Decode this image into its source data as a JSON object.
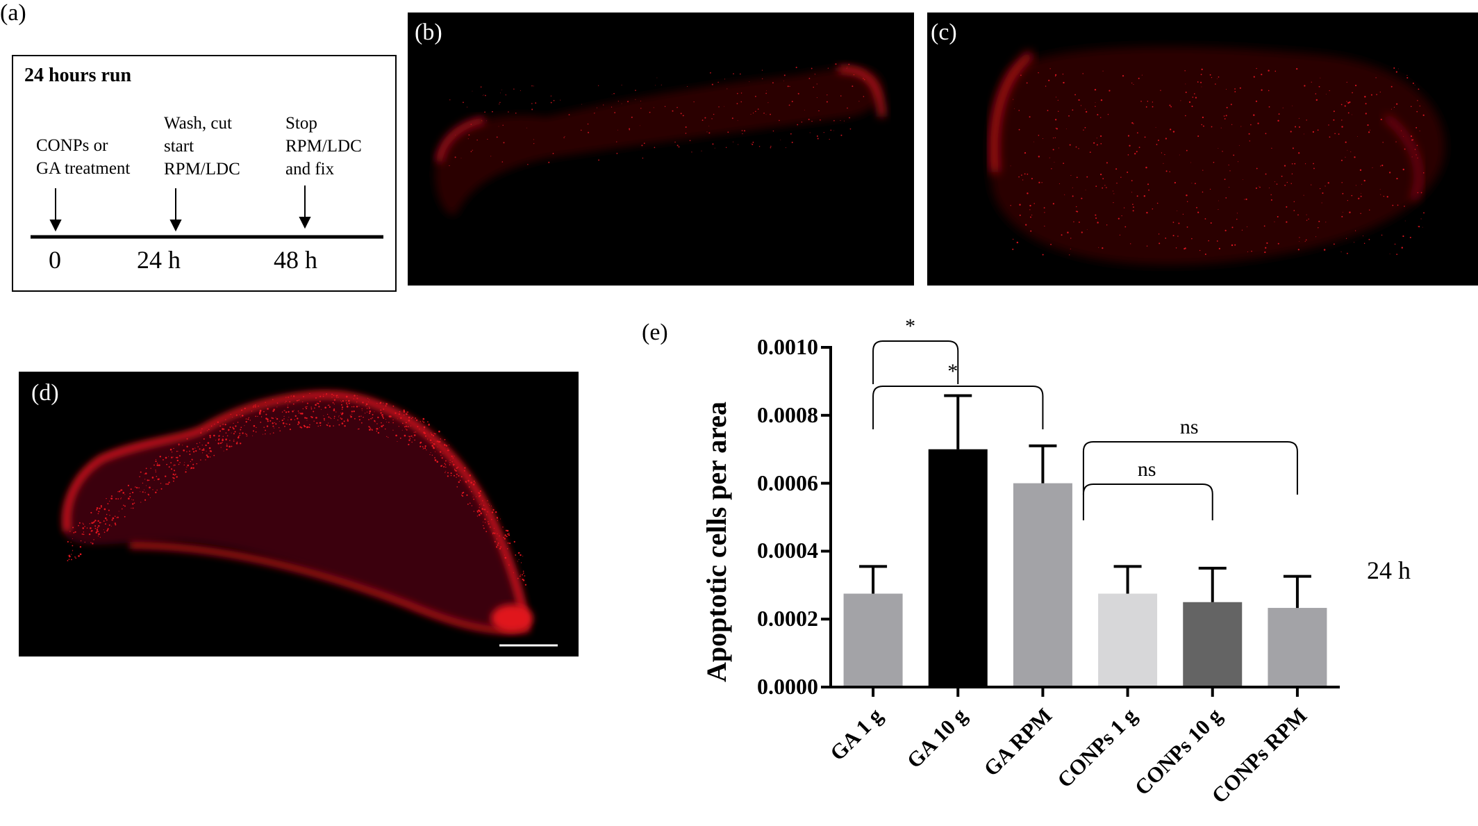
{
  "panel_labels": {
    "a": "(a)",
    "b": "(b)",
    "c": "(c)",
    "d": "(d)",
    "e": "(e)"
  },
  "timeline": {
    "title": "24 hours run",
    "steps": [
      {
        "text": "CONPs or\nGA treatment",
        "tick": "0"
      },
      {
        "text": "Wash, cut\nstart\nRPM/LDC",
        "tick": "24 h"
      },
      {
        "text": "Stop\nRPM/LDC\nand fix",
        "tick": "48 h"
      }
    ]
  },
  "microscopy": {
    "stain_color": "#e0141e",
    "background": "#000000",
    "scale_bar_color": "#ffffff"
  },
  "chart_data": {
    "type": "bar",
    "categories": [
      "GA 1 g",
      "GA 10 g",
      "GA RPM",
      "CONPs 1 g",
      "CONPs 10 g",
      "CONPs RPM"
    ],
    "values": [
      0.000275,
      0.0007,
      0.0006,
      0.000275,
      0.00025,
      0.000233
    ],
    "errors": [
      8e-05,
      0.000158,
      0.00011,
      8e-05,
      0.0001,
      9.3e-05
    ],
    "colors": [
      "#a3a3a7",
      "#000000",
      "#a3a3a7",
      "#d7d7d9",
      "#646464",
      "#a3a3a7"
    ],
    "ylabel": "Apoptotic cells per area",
    "yticks": [
      "0.0000",
      "0.0002",
      "0.0004",
      "0.0006",
      "0.0008",
      "0.0010"
    ],
    "ylim": [
      0,
      0.001
    ],
    "grid": false,
    "side_label": "24 h",
    "significance": [
      {
        "from": "GA 1 g",
        "to": "GA 10 g",
        "label": "*"
      },
      {
        "from": "GA 1 g",
        "to": "GA RPM",
        "label": "*"
      },
      {
        "from": "GA RPM",
        "to": "CONPs 10 g",
        "label": "ns"
      },
      {
        "from": "GA RPM",
        "to": "CONPs RPM",
        "label": "ns"
      }
    ]
  }
}
